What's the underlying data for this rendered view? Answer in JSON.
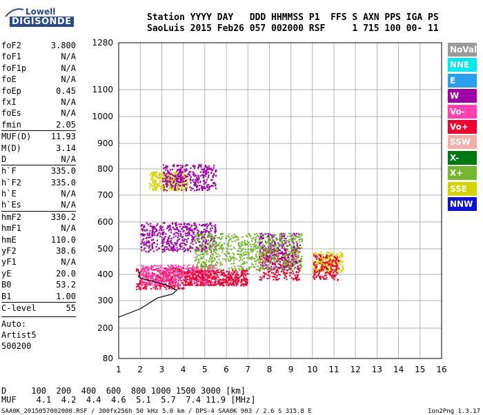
{
  "logo": {
    "brand": "Lowell",
    "product": "DIGISONDE"
  },
  "header": {
    "line1": "Station YYYY DAY   DDD HHMMSS P1  FFS S AXN PPS IGA PS",
    "line2": "SaoLuis 2015 Feb26 057 002000 RSF     1 715 100 00- 11"
  },
  "params": [
    {
      "name": "foF2",
      "value": "3.800"
    },
    {
      "name": "foF1",
      "value": "N/A"
    },
    {
      "name": "foF1p",
      "value": "N/A"
    },
    {
      "name": "foE",
      "value": "N/A"
    },
    {
      "name": "foEp",
      "value": "0.45"
    },
    {
      "name": "fxI",
      "value": "N/A"
    },
    {
      "name": "foEs",
      "value": "N/A"
    },
    {
      "name": "fmin",
      "value": "2.05"
    },
    {
      "name": "MUF(D)",
      "value": "11.93"
    },
    {
      "name": "M(D)",
      "value": "3.14"
    },
    {
      "name": "D",
      "value": "N/A"
    },
    {
      "name": "h`F",
      "value": "335.0"
    },
    {
      "name": "h`F2",
      "value": "335.0"
    },
    {
      "name": "h`E",
      "value": "N/A"
    },
    {
      "name": "h`Es",
      "value": "N/A"
    },
    {
      "name": "hmF2",
      "value": "330.2"
    },
    {
      "name": "hmF1",
      "value": "N/A"
    },
    {
      "name": "hmE",
      "value": "110.0"
    },
    {
      "name": "yF2",
      "value": "38.6"
    },
    {
      "name": "yF1",
      "value": "N/A"
    },
    {
      "name": "yE",
      "value": "20.0"
    },
    {
      "name": "B0",
      "value": "53.2"
    },
    {
      "name": "B1",
      "value": "1.00"
    },
    {
      "name": "C-level",
      "value": "55"
    }
  ],
  "auto": {
    "line1": "Auto:",
    "line2": "Artist5",
    "line3": "500200"
  },
  "footer": {
    "d_line": "D     100  200  400  600  800 1000 1500 3000 [km]",
    "muf_line": "MUF    4.1  4.2  4.4  4.6  5.1  5.7  7.4 11.9 [MHz]",
    "file_line": "SAA0K_2015057002000.RSF / 300fx256h 50 kHz 5.0 km / DPS-4 SAA0K 903 / 2.6 S 315.8 E",
    "version": "Ion2Png 1.3.17"
  },
  "legend": [
    {
      "label": "NoVal",
      "color": "#9a9a9a"
    },
    {
      "label": "NNE",
      "color": "#00e8f0"
    },
    {
      "label": "E",
      "color": "#2aa0f0"
    },
    {
      "label": "W",
      "color": "#a000a8"
    },
    {
      "label": "Vo-",
      "color": "#ff40b0"
    },
    {
      "label": "Vo+",
      "color": "#f00030"
    },
    {
      "label": "SSW",
      "color": "#f4b0a8"
    },
    {
      "label": "X-",
      "color": "#007a10"
    },
    {
      "label": "X+",
      "color": "#74b830"
    },
    {
      "label": "SSE",
      "color": "#d4d400"
    },
    {
      "label": "NNW",
      "color": "#1010d8"
    }
  ],
  "chart_data": {
    "type": "scatter",
    "title": "",
    "xlabel": "",
    "ylabel": "",
    "xlim": [
      1,
      16
    ],
    "ylim": [
      80,
      1280
    ],
    "xticks": [
      1,
      2,
      3,
      4,
      5,
      6,
      7,
      8,
      9,
      10,
      11,
      12,
      13,
      14,
      15,
      16
    ],
    "yticks": [
      80,
      200,
      300,
      400,
      500,
      600,
      700,
      800,
      900,
      1000,
      1100,
      1280
    ],
    "yscale": "nonlinear (virtual height)",
    "grid": true,
    "legend_position": "right",
    "trace": {
      "name": "profile",
      "x": [
        1.0,
        2.0,
        2.8,
        3.5,
        3.7,
        3.2,
        2.5,
        2.0,
        1.9
      ],
      "y": [
        240,
        270,
        310,
        325,
        340,
        360,
        375,
        385,
        420
      ]
    },
    "clusters": [
      {
        "series": "Vo+",
        "x": [
          1.8,
          4.0
        ],
        "y": [
          345,
          430
        ]
      },
      {
        "series": "Vo-",
        "x": [
          2.0,
          5.5
        ],
        "y": [
          360,
          440
        ]
      },
      {
        "series": "W",
        "x": [
          2.0,
          5.5
        ],
        "y": [
          490,
          600
        ]
      },
      {
        "series": "Vo+",
        "x": [
          4.0,
          7.0
        ],
        "y": [
          360,
          420
        ]
      },
      {
        "series": "Vo+",
        "x": [
          7.5,
          9.4
        ],
        "y": [
          380,
          500
        ]
      },
      {
        "series": "W",
        "x": [
          7.5,
          9.4
        ],
        "y": [
          420,
          560
        ]
      },
      {
        "series": "SSE",
        "x": [
          10.0,
          11.4
        ],
        "y": [
          410,
          490
        ]
      },
      {
        "series": "Vo+",
        "x": [
          10.0,
          11.2
        ],
        "y": [
          380,
          480
        ]
      },
      {
        "series": "SSE",
        "x": [
          2.4,
          4.2
        ],
        "y": [
          720,
          790
        ]
      },
      {
        "series": "W",
        "x": [
          3.0,
          5.5
        ],
        "y": [
          720,
          820
        ]
      },
      {
        "series": "X+",
        "x": [
          4.5,
          9.5
        ],
        "y": [
          420,
          560
        ]
      }
    ]
  }
}
